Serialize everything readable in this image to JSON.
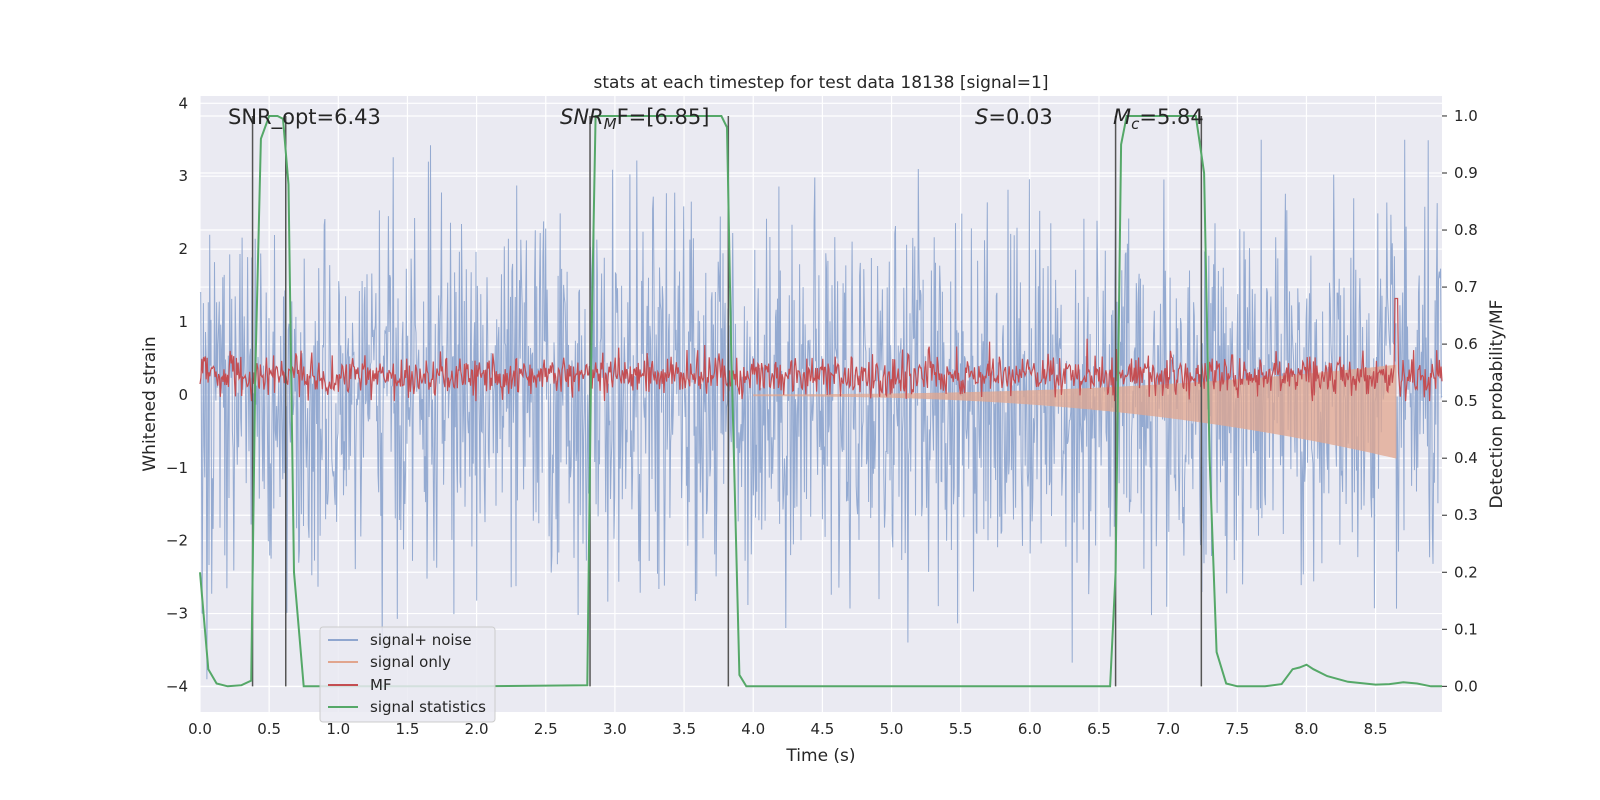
{
  "chart_data": {
    "type": "line",
    "title": "stats at each timestep for test data 18138 [signal=1]",
    "xlabel": "Time (s)",
    "ylabel_left": "Whitened strain",
    "ylabel_right": "Detection probability/MF",
    "xlim": [
      0.0,
      8.98
    ],
    "ylim_left": [
      -4.35,
      4.1
    ],
    "ylim_right": [
      -0.045,
      1.035
    ],
    "x_ticks": [
      "0.0",
      "0.5",
      "1.0",
      "1.5",
      "2.0",
      "2.5",
      "3.0",
      "3.5",
      "4.0",
      "4.5",
      "5.0",
      "5.5",
      "6.0",
      "6.5",
      "7.0",
      "7.5",
      "8.0",
      "8.5"
    ],
    "y_ticks_left": [
      "4",
      "3",
      "2",
      "1",
      "0",
      "−1",
      "−2",
      "−3",
      "−4"
    ],
    "y_ticks_right": [
      "1.0",
      "0.9",
      "0.8",
      "0.7",
      "0.6",
      "0.5",
      "0.4",
      "0.3",
      "0.2",
      "0.1",
      "0.0"
    ],
    "grid": true,
    "legend_position": "lower-left",
    "annotations": {
      "snr_opt": "SNR_opt=6.43",
      "snr_mf_a": "SNR",
      "snr_mf_sub": "M",
      "snr_mf_b": "F=[6.85]",
      "s_a": "S",
      "s_b": "=0.03",
      "mc_a": "M",
      "mc_sub": "c",
      "mc_b": "=5.84"
    },
    "vertical_markers_s": [
      0.38,
      0.62,
      2.82,
      3.82,
      6.62,
      7.24
    ],
    "series": [
      {
        "name": "signal+ noise",
        "color": "#8fa6cf",
        "description_values": {
          "typical_range": [
            -2.5,
            2.5
          ],
          "extreme_range": [
            -3.9,
            3.5
          ]
        }
      },
      {
        "name": "signal only",
        "color": "#e1a58e",
        "description_values": {
          "chirp_end_s": 8.65,
          "peak_amplitude": 0.45
        }
      },
      {
        "name": "MF",
        "color": "#c44e52",
        "description_values": {
          "typical_range": [
            0.0,
            0.5
          ],
          "peak_at_s": 8.65,
          "peak_value": 1.0
        }
      },
      {
        "name": "signal statistics",
        "color": "#55a868",
        "points": [
          [
            0.0,
            0.2
          ],
          [
            0.06,
            0.03
          ],
          [
            0.12,
            0.005
          ],
          [
            0.2,
            0.0
          ],
          [
            0.3,
            0.002
          ],
          [
            0.37,
            0.01
          ],
          [
            0.4,
            0.55
          ],
          [
            0.44,
            0.96
          ],
          [
            0.5,
            1.0
          ],
          [
            0.56,
            1.0
          ],
          [
            0.6,
            0.995
          ],
          [
            0.64,
            0.88
          ],
          [
            0.68,
            0.2
          ],
          [
            0.75,
            0.0
          ],
          [
            1.0,
            0.0
          ],
          [
            2.0,
            0.0
          ],
          [
            2.8,
            0.002
          ],
          [
            2.83,
            0.6
          ],
          [
            2.86,
            1.0
          ],
          [
            3.5,
            1.0
          ],
          [
            3.77,
            1.0
          ],
          [
            3.81,
            0.98
          ],
          [
            3.84,
            0.6
          ],
          [
            3.9,
            0.02
          ],
          [
            3.95,
            0.0
          ],
          [
            5.0,
            0.0
          ],
          [
            6.0,
            0.0
          ],
          [
            6.58,
            0.0
          ],
          [
            6.62,
            0.2
          ],
          [
            6.66,
            0.95
          ],
          [
            6.7,
            1.0
          ],
          [
            7.2,
            1.0
          ],
          [
            7.26,
            0.9
          ],
          [
            7.3,
            0.4
          ],
          [
            7.35,
            0.06
          ],
          [
            7.42,
            0.005
          ],
          [
            7.5,
            0.0
          ],
          [
            7.7,
            0.0
          ],
          [
            7.82,
            0.004
          ],
          [
            7.9,
            0.03
          ],
          [
            7.95,
            0.033
          ],
          [
            8.0,
            0.038
          ],
          [
            8.05,
            0.03
          ],
          [
            8.15,
            0.018
          ],
          [
            8.3,
            0.008
          ],
          [
            8.5,
            0.003
          ],
          [
            8.6,
            0.004
          ],
          [
            8.7,
            0.007
          ],
          [
            8.8,
            0.005
          ],
          [
            8.9,
            0.0
          ],
          [
            8.98,
            0.0
          ]
        ]
      }
    ]
  }
}
